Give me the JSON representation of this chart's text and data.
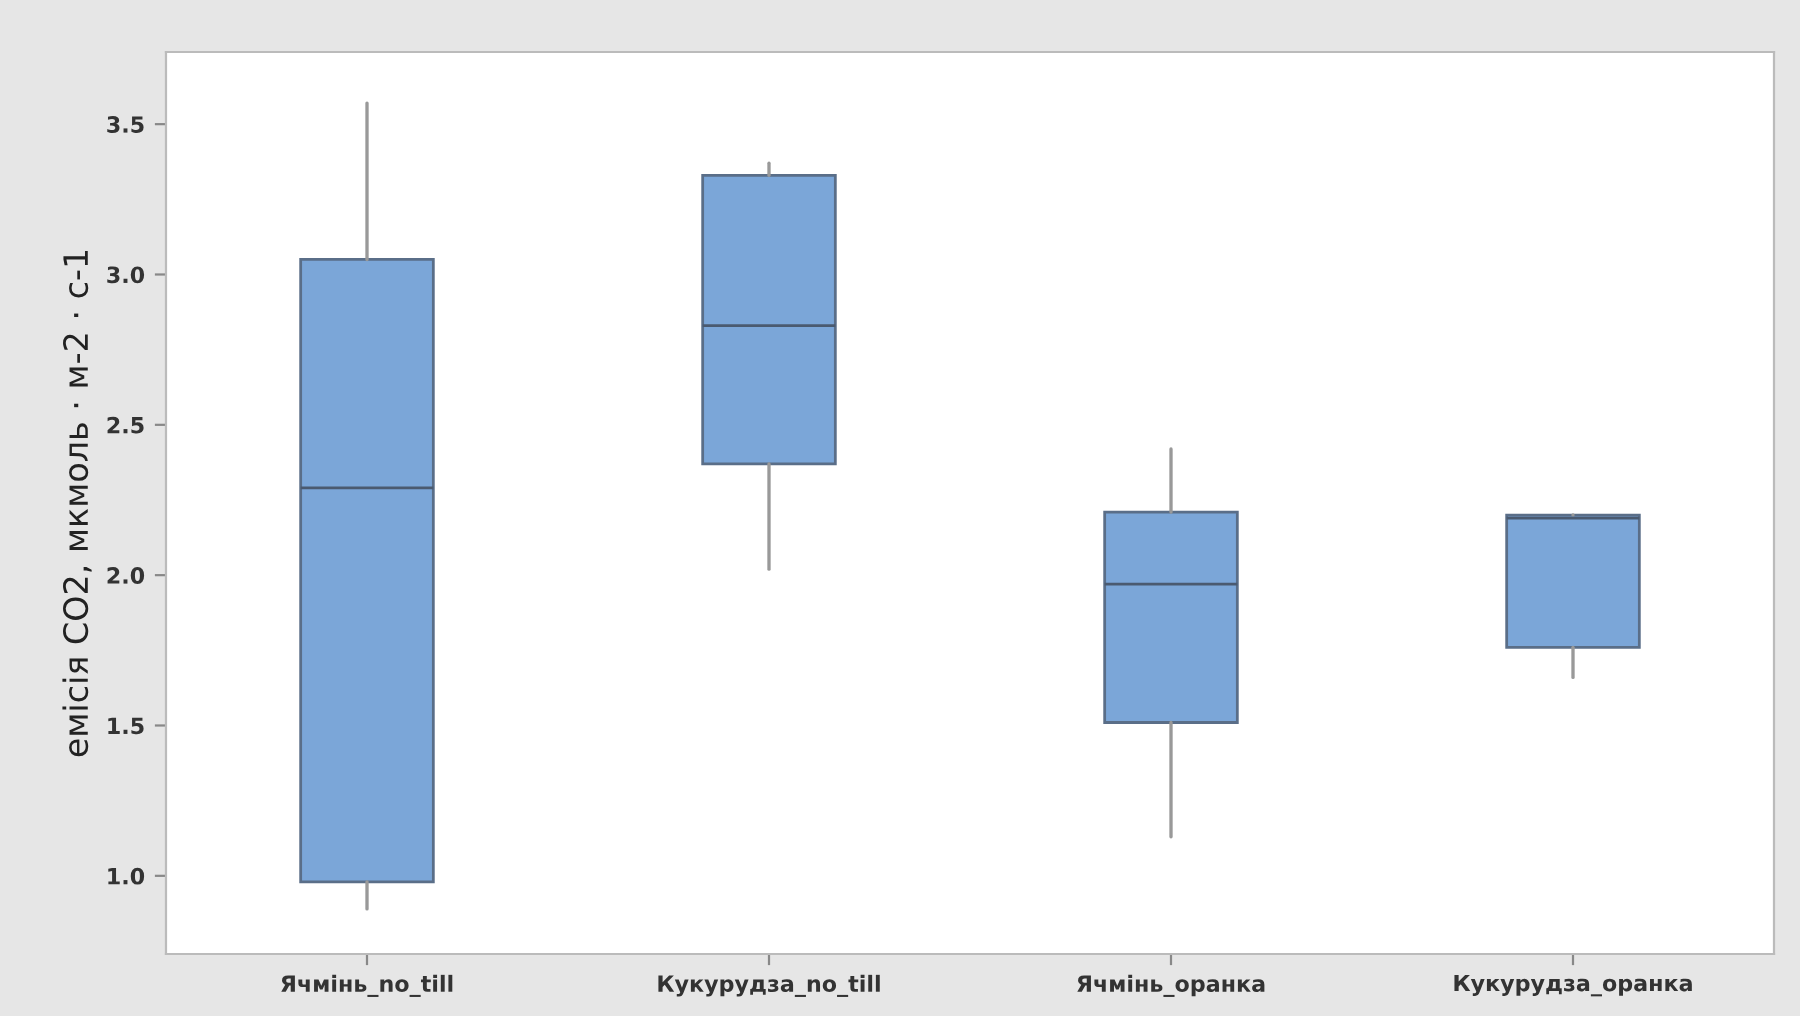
{
  "chart_data": {
    "type": "box",
    "ylabel": "емісія CO2, мкмоль · м-2 · с-1",
    "categories": [
      "Ячмінь_no_till",
      "Кукурудза_no_till",
      "Ячмінь_оранка",
      "Кукурудза_оранка"
    ],
    "boxes": [
      {
        "low": 0.89,
        "q1": 0.98,
        "median": 2.29,
        "q3": 3.05,
        "high": 3.57
      },
      {
        "low": 2.02,
        "q1": 2.37,
        "median": 2.83,
        "q3": 3.33,
        "high": 3.37
      },
      {
        "low": 1.13,
        "q1": 1.51,
        "median": 1.97,
        "q3": 2.21,
        "high": 2.42
      },
      {
        "low": 1.66,
        "q1": 1.76,
        "median": 2.19,
        "q3": 2.2,
        "high": 2.2
      }
    ],
    "color": "#7ba6d8",
    "ylim": [
      0.74,
      3.74
    ],
    "yticks": [
      {
        "value": 1.0,
        "label": "1.0"
      },
      {
        "value": 1.5,
        "label": "1.5"
      },
      {
        "value": 2.0,
        "label": "2.0"
      },
      {
        "value": 2.5,
        "label": "2.5"
      },
      {
        "value": 3.0,
        "label": "3.0"
      },
      {
        "value": 3.5,
        "label": "3.5"
      }
    ],
    "grid": false
  }
}
